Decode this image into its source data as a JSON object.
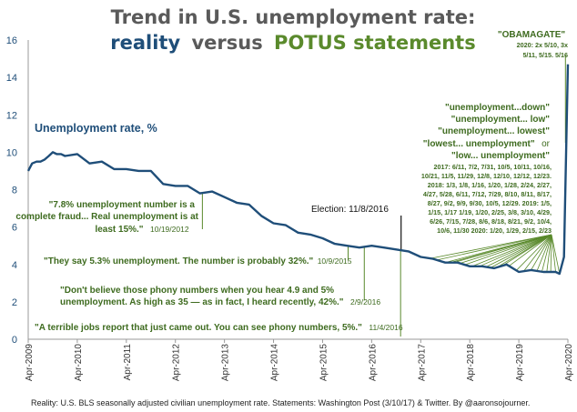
{
  "chart_data": {
    "type": "line",
    "title_line1": "Trend in U.S. unemployment rate:",
    "title_reality": "reality",
    "title_versus": "versus",
    "title_potus": "POTUS statements",
    "series_label": "Unemployment rate, %",
    "ylim": [
      0,
      16
    ],
    "yticks": [
      "0",
      "2",
      "4",
      "6",
      "8",
      "10",
      "12",
      "14",
      "16"
    ],
    "xlim": [
      2009.25,
      2020.25
    ],
    "xticks": [
      {
        "label": "Apr-2009",
        "x": 2009.25
      },
      {
        "label": "Apr-2010",
        "x": 2010.25
      },
      {
        "label": "Apr-2011",
        "x": 2011.25
      },
      {
        "label": "Apr-2012",
        "x": 2012.25
      },
      {
        "label": "Apr-2013",
        "x": 2013.25
      },
      {
        "label": "Apr-2014",
        "x": 2014.25
      },
      {
        "label": "Apr-2015",
        "x": 2015.25
      },
      {
        "label": "Apr-2016",
        "x": 2016.25
      },
      {
        "label": "Apr-2017",
        "x": 2017.25
      },
      {
        "label": "Apr-2018",
        "x": 2018.25
      },
      {
        "label": "Apr-2019",
        "x": 2019.25
      },
      {
        "label": "Apr-2020",
        "x": 2020.25
      }
    ],
    "series": [
      {
        "name": "Unemployment rate, %",
        "x": [
          2009.25,
          2009.33,
          2009.42,
          2009.5,
          2009.58,
          2009.67,
          2009.75,
          2009.83,
          2009.92,
          2010.0,
          2010.25,
          2010.5,
          2010.75,
          2011.0,
          2011.25,
          2011.5,
          2011.75,
          2012.0,
          2012.25,
          2012.5,
          2012.75,
          2013.0,
          2013.25,
          2013.5,
          2013.75,
          2014.0,
          2014.25,
          2014.5,
          2014.75,
          2015.0,
          2015.25,
          2015.5,
          2015.75,
          2016.0,
          2016.25,
          2016.5,
          2016.75,
          2017.0,
          2017.25,
          2017.5,
          2017.75,
          2018.0,
          2018.25,
          2018.5,
          2018.75,
          2019.0,
          2019.25,
          2019.5,
          2019.75,
          2020.0,
          2020.08,
          2020.17,
          2020.25
        ],
        "y": [
          9.0,
          9.4,
          9.5,
          9.5,
          9.6,
          9.8,
          10.0,
          9.9,
          9.9,
          9.8,
          9.9,
          9.4,
          9.5,
          9.1,
          9.1,
          9.0,
          9.0,
          8.3,
          8.2,
          8.2,
          7.8,
          7.9,
          7.6,
          7.3,
          7.2,
          6.6,
          6.2,
          6.1,
          5.7,
          5.6,
          5.4,
          5.1,
          5.0,
          4.9,
          5.0,
          4.9,
          4.8,
          4.7,
          4.4,
          4.3,
          4.1,
          4.1,
          3.9,
          3.9,
          3.8,
          4.0,
          3.6,
          3.7,
          3.6,
          3.6,
          3.5,
          4.4,
          14.7
        ]
      }
    ],
    "annotations": {
      "q2012": {
        "line1": "\"7.8% unemployment number is a",
        "line2": "complete fraud... Real unemployment is at",
        "line3": "least 15%.\"",
        "date": "10/19/2012",
        "x": 2012.8
      },
      "q2015": {
        "text": "\"They say 5.3% unemployment. The number is probably 32%.\"",
        "date": "10/9/2015",
        "x": 2015.77
      },
      "q2016a": {
        "line1": "\"Don't believe those phony numbers when you hear 4.9 and 5%",
        "line2": "unemployment. As high as 35 — as in fact, I heard recently, 42%.\"",
        "date": "2/9/2016",
        "x": 2016.1
      },
      "q2016b": {
        "text": "\"A terrible jobs report that just came out. You can see phony numbers, 5%.\"",
        "date": "11/4/2016",
        "x": 2016.84
      },
      "election": {
        "text": "Election: 11/8/2016",
        "x": 2016.85
      },
      "potus_block": {
        "heading": [
          "\"unemployment...down\"",
          "\"unemployment... low\"",
          "\"unemployment... lowest\""
        ],
        "line4a": "\"lowest... unemployment\"",
        "line4b": "or",
        "line5": "\"low... unemployment\"",
        "dates": [
          "2017: 6/11, 7/2, 7/31, 10/5, 10/11, 10/16,",
          "10/21, 11/5, 11/29, 12/8, 12/10, 12/12, 12/23.",
          "2018: 1/3, 1/8, 1/16, 1/20, 1/28, 2/24, 2/27,",
          "4/27, 5/28, 6/11, 7/12, 7/29, 8/10, 8/11, 8/17,",
          "8/27, 9/2, 9/9, 9/30, 10/5, 12/29. 2019: 1/5,",
          "1/15, 1/17 1/19, 1/20, 2/25, 3/8, 3/10, 4/29,",
          "6/26, 7/15, 7/28, 8/6, 8/18, 8/21, 9/2, 10/4,",
          "10/6, 11/30 2020: 1/20, 1/29, 2/15, 2/23"
        ]
      },
      "obamagate": {
        "text": "\"OBAMAGATE\"",
        "line2": "2020: 2x 5/10, 3x",
        "line3": "5/11, 5/15. 5/16"
      }
    },
    "source": "Reality: U.S. BLS seasonally adjusted civilian unemployment rate. Statements: Washington Post (3/10/17) & Twitter. By @aaronsojourner.",
    "colors": {
      "line": "#1f4e79",
      "annotation": "#5a8a2c",
      "title": "#5a5a5a"
    }
  }
}
